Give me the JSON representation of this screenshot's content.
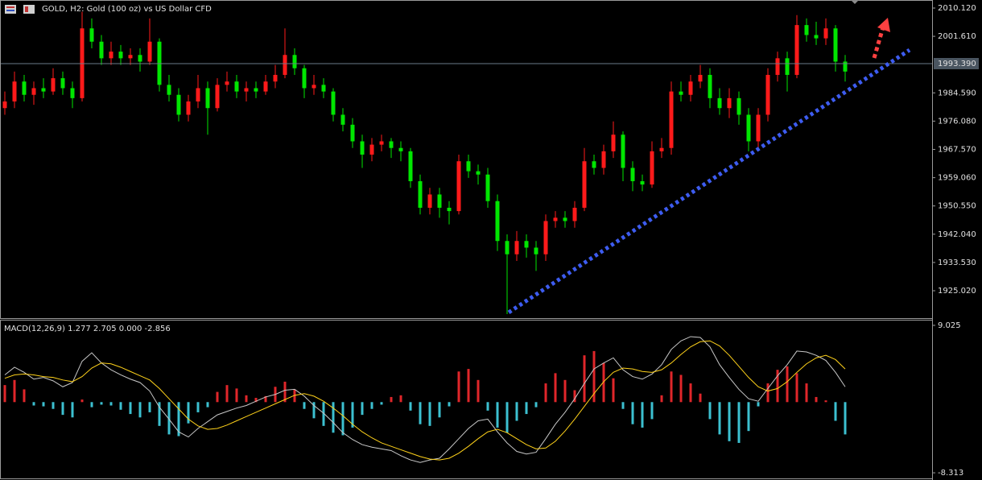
{
  "chart_data": [
    {
      "type": "candlestick",
      "title": "GOLD, H2:  Gold (100 oz) vs US Dollar CFD",
      "up_color": "#ff1a1a",
      "down_color": "#00e600",
      "candles": {
        "open": [
          1980,
          1982,
          1988,
          1984,
          1986,
          1985,
          1989,
          1986,
          1983,
          2004,
          2000,
          1995,
          1997,
          1995,
          1996,
          1994,
          2000,
          1987,
          1984,
          1978,
          1982,
          1986,
          1980,
          1987,
          1988,
          1985,
          1986,
          1985,
          1988,
          1990,
          1996,
          1992,
          1986,
          1987,
          1985,
          1978,
          1975,
          1970,
          1966,
          1969,
          1970,
          1968,
          1967,
          1958,
          1950,
          1954,
          1950,
          1949,
          1964,
          1961,
          1960,
          1952,
          1940,
          1936,
          1940,
          1938,
          1936,
          1946,
          1947,
          1946,
          1950,
          1964,
          1962,
          1967,
          1972,
          1962,
          1958,
          1957,
          1967,
          1968,
          1985,
          1984,
          1988,
          1990,
          1983,
          1980,
          1983,
          1978,
          1970,
          1978,
          1990,
          1995,
          1990,
          2005,
          2002,
          2001,
          2004,
          1994
        ],
        "high": [
          1985,
          1991,
          1990,
          1988,
          1989,
          1992,
          1991,
          1988,
          2009,
          2007,
          2002,
          2000,
          1999,
          1998,
          1998,
          2007,
          2001,
          1990,
          1986,
          1984,
          1990,
          1988,
          1989,
          1991,
          1990,
          1988,
          1988,
          1990,
          1993,
          2004,
          1998,
          1993,
          1990,
          1989,
          1986,
          1980,
          1977,
          1972,
          1971,
          1972,
          1971,
          1970,
          1968,
          1960,
          1956,
          1956,
          1952,
          1966,
          1966,
          1963,
          1962,
          1954,
          1942,
          1943,
          1942,
          1940,
          1948,
          1949,
          1949,
          1952,
          1968,
          1966,
          1969,
          1976,
          1973,
          1964,
          1960,
          1970,
          1971,
          1988,
          1988,
          1990,
          1993,
          1992,
          1986,
          1986,
          1985,
          1980,
          1980,
          1992,
          1997,
          1997,
          2008,
          2007,
          2006,
          2007,
          2005,
          1996
        ],
        "low": [
          1978,
          1980,
          1982,
          1981,
          1983,
          1984,
          1984,
          1980,
          1982,
          1998,
          1993,
          1993,
          1993,
          1993,
          1991,
          1993,
          1985,
          1982,
          1976,
          1976,
          1980,
          1972,
          1979,
          1985,
          1983,
          1982,
          1983,
          1984,
          1986,
          1989,
          1990,
          1983,
          1984,
          1983,
          1976,
          1973,
          1968,
          1962,
          1964,
          1967,
          1965,
          1964,
          1956,
          1948,
          1948,
          1947,
          1945,
          1948,
          1959,
          1957,
          1950,
          1937,
          1918,
          1934,
          1935,
          1931,
          1934,
          1944,
          1944,
          1944,
          1949,
          1960,
          1960,
          1965,
          1958,
          1955,
          1955,
          1956,
          1965,
          1966,
          1982,
          1982,
          1986,
          1980,
          1978,
          1977,
          1975,
          1967,
          1968,
          1976,
          1988,
          1985,
          1989,
          2000,
          1999,
          1999,
          1991,
          1988
        ],
        "close": [
          1982,
          1988,
          1984,
          1986,
          1985,
          1989,
          1986,
          1983,
          2004,
          2000,
          1995,
          1997,
          1995,
          1996,
          1994,
          2000,
          1987,
          1984,
          1978,
          1982,
          1986,
          1980,
          1987,
          1988,
          1985,
          1986,
          1985,
          1988,
          1990,
          1996,
          1992,
          1986,
          1987,
          1985,
          1978,
          1975,
          1970,
          1966,
          1969,
          1970,
          1968,
          1967,
          1958,
          1950,
          1954,
          1950,
          1949,
          1964,
          1961,
          1960,
          1952,
          1940,
          1936,
          1940,
          1938,
          1936,
          1946,
          1947,
          1946,
          1950,
          1964,
          1962,
          1967,
          1972,
          1962,
          1958,
          1957,
          1967,
          1968,
          1985,
          1984,
          1988,
          1990,
          1983,
          1980,
          1983,
          1978,
          1970,
          1978,
          1990,
          1995,
          1990,
          2005,
          2002,
          2001,
          2004,
          1994,
          1991
        ]
      },
      "ylim": [
        1916.78,
        2012.3
      ],
      "yticks": [
        {
          "value": 2010.12,
          "label": "2010.120"
        },
        {
          "value": 2001.61,
          "label": "2001.610"
        },
        {
          "value": 1984.59,
          "label": "1984.590"
        },
        {
          "value": 1976.08,
          "label": "1976.080"
        },
        {
          "value": 1967.57,
          "label": "1967.570"
        },
        {
          "value": 1959.06,
          "label": "1959.060"
        },
        {
          "value": 1950.55,
          "label": "1950.550"
        },
        {
          "value": 1942.04,
          "label": "1942.040"
        },
        {
          "value": 1933.53,
          "label": "1933.530"
        },
        {
          "value": 1925.02,
          "label": "1925.020"
        }
      ],
      "price_line": {
        "value": 1993.39,
        "label": "1993.390",
        "color": "#6a7a8a"
      },
      "trendline": {
        "start": 1918.5,
        "end": 1997.5,
        "color": "#3d5cf0"
      }
    },
    {
      "type": "macd",
      "title": "MACD(12,26,9) 1.277 2.705 0.000 -2.856",
      "ylim": [
        -8.97,
        9.59
      ],
      "yticks": [
        9.025,
        -8.313
      ],
      "histogram": {
        "up_color": "#e0262a",
        "down_color": "#3cc0d0",
        "values": [
          2.0,
          2.6,
          1.5,
          -0.4,
          -0.5,
          -0.8,
          -1.5,
          -1.8,
          0.3,
          -0.6,
          -0.3,
          -0.4,
          -0.9,
          -1.4,
          -1.8,
          -1.2,
          -2.8,
          -3.8,
          -4.0,
          -2.5,
          -1.2,
          -0.6,
          1.2,
          2.0,
          1.6,
          0.8,
          0.5,
          0.7,
          1.8,
          2.4,
          1.5,
          -0.8,
          -1.9,
          -2.8,
          -3.6,
          -3.9,
          -3.0,
          -1.5,
          -0.8,
          -0.3,
          0.6,
          0.8,
          -1.0,
          -2.6,
          -2.8,
          -1.8,
          -0.5,
          3.6,
          3.9,
          2.6,
          -1.0,
          -3.0,
          -3.6,
          -2.2,
          -1.4,
          -0.6,
          2.2,
          3.4,
          2.6,
          1.4,
          5.5,
          6.0,
          4.6,
          2.8,
          -0.8,
          -2.6,
          -3.0,
          -2.0,
          0.8,
          3.6,
          3.2,
          2.2,
          1.0,
          -2.0,
          -3.8,
          -4.6,
          -4.8,
          -3.4,
          -0.5,
          2.2,
          3.8,
          4.2,
          3.4,
          2.2,
          0.6,
          0.2,
          -2.2,
          -3.8
        ]
      },
      "macd_line": {
        "color": "#c8c8c8",
        "values": [
          3.2,
          4.1,
          3.5,
          2.7,
          2.9,
          2.5,
          1.8,
          2.3,
          4.8,
          5.8,
          4.6,
          3.8,
          3.2,
          2.7,
          2.3,
          1.3,
          -0.6,
          -2.0,
          -3.5,
          -4.1,
          -3.1,
          -2.3,
          -1.5,
          -1.1,
          -0.7,
          -0.4,
          0.1,
          0.6,
          0.9,
          1.4,
          1.5,
          0.7,
          -0.4,
          -1.3,
          -2.4,
          -3.6,
          -4.4,
          -5.0,
          -5.3,
          -5.5,
          -5.7,
          -6.3,
          -6.8,
          -7.1,
          -6.8,
          -6.6,
          -5.5,
          -4.3,
          -3.1,
          -2.2,
          -2.0,
          -3.5,
          -4.8,
          -5.8,
          -6.1,
          -5.9,
          -4.3,
          -2.6,
          -1.2,
          0.4,
          2.2,
          3.9,
          4.6,
          5.2,
          3.8,
          3.0,
          2.7,
          3.3,
          4.4,
          6.2,
          7.2,
          7.7,
          7.6,
          6.5,
          4.4,
          2.9,
          1.5,
          0.4,
          0.1,
          1.6,
          3.1,
          4.4,
          6.0,
          5.9,
          5.5,
          4.9,
          3.5,
          1.8
        ]
      },
      "signal_line": {
        "color": "#ffd21a",
        "values": [
          2.8,
          3.2,
          3.3,
          3.2,
          3.0,
          2.9,
          2.6,
          2.4,
          3.0,
          4.0,
          4.6,
          4.5,
          4.1,
          3.6,
          3.1,
          2.6,
          1.6,
          0.4,
          -0.8,
          -2.0,
          -2.8,
          -3.2,
          -3.1,
          -2.7,
          -2.2,
          -1.7,
          -1.2,
          -0.7,
          -0.2,
          0.3,
          0.8,
          1.0,
          0.7,
          0.1,
          -0.7,
          -1.6,
          -2.6,
          -3.5,
          -4.2,
          -4.8,
          -5.2,
          -5.6,
          -6.0,
          -6.4,
          -6.7,
          -6.8,
          -6.6,
          -6.0,
          -5.2,
          -4.3,
          -3.5,
          -3.2,
          -3.6,
          -4.3,
          -5.0,
          -5.5,
          -5.4,
          -4.6,
          -3.4,
          -2.0,
          -0.5,
          1.0,
          2.4,
          3.5,
          4.0,
          3.9,
          3.6,
          3.5,
          3.8,
          4.6,
          5.6,
          6.5,
          7.1,
          7.2,
          6.6,
          5.5,
          4.2,
          2.9,
          1.8,
          1.3,
          1.6,
          2.4,
          3.5,
          4.5,
          5.2,
          5.5,
          5.0,
          3.9
        ]
      }
    }
  ]
}
